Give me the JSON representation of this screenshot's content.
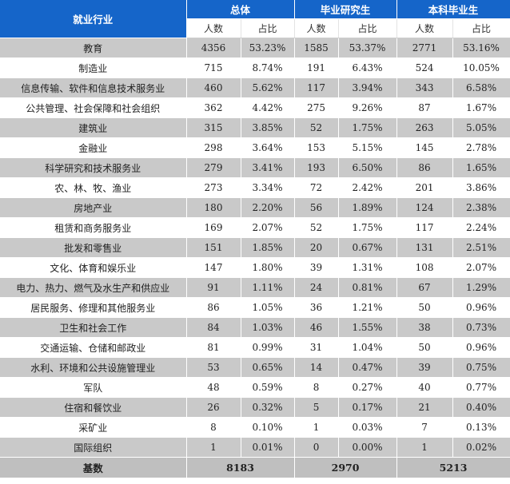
{
  "header": {
    "category": "就业行业",
    "groups": [
      "总体",
      "毕业研究生",
      "本科毕业生"
    ],
    "subheaders": [
      "人数",
      "占比",
      "人数",
      "占比",
      "人数",
      "占比"
    ]
  },
  "rows": [
    {
      "name": "教育",
      "cells": [
        "4356",
        "53.23%",
        "1585",
        "53.37%",
        "2771",
        "53.16%"
      ]
    },
    {
      "name": "制造业",
      "cells": [
        "715",
        "8.74%",
        "191",
        "6.43%",
        "524",
        "10.05%"
      ]
    },
    {
      "name": "信息传输、软件和信息技术服务业",
      "cells": [
        "460",
        "5.62%",
        "117",
        "3.94%",
        "343",
        "6.58%"
      ]
    },
    {
      "name": "公共管理、社会保障和社会组织",
      "cells": [
        "362",
        "4.42%",
        "275",
        "9.26%",
        "87",
        "1.67%"
      ]
    },
    {
      "name": "建筑业",
      "cells": [
        "315",
        "3.85%",
        "52",
        "1.75%",
        "263",
        "5.05%"
      ]
    },
    {
      "name": "金融业",
      "cells": [
        "298",
        "3.64%",
        "153",
        "5.15%",
        "145",
        "2.78%"
      ]
    },
    {
      "name": "科学研究和技术服务业",
      "cells": [
        "279",
        "3.41%",
        "193",
        "6.50%",
        "86",
        "1.65%"
      ]
    },
    {
      "name": "农、林、牧、渔业",
      "cells": [
        "273",
        "3.34%",
        "72",
        "2.42%",
        "201",
        "3.86%"
      ]
    },
    {
      "name": "房地产业",
      "cells": [
        "180",
        "2.20%",
        "56",
        "1.89%",
        "124",
        "2.38%"
      ]
    },
    {
      "name": "租赁和商务服务业",
      "cells": [
        "169",
        "2.07%",
        "52",
        "1.75%",
        "117",
        "2.24%"
      ]
    },
    {
      "name": "批发和零售业",
      "cells": [
        "151",
        "1.85%",
        "20",
        "0.67%",
        "131",
        "2.51%"
      ]
    },
    {
      "name": "文化、体育和娱乐业",
      "cells": [
        "147",
        "1.80%",
        "39",
        "1.31%",
        "108",
        "2.07%"
      ]
    },
    {
      "name": "电力、热力、燃气及水生产和供应业",
      "cells": [
        "91",
        "1.11%",
        "24",
        "0.81%",
        "67",
        "1.29%"
      ]
    },
    {
      "name": "居民服务、修理和其他服务业",
      "cells": [
        "86",
        "1.05%",
        "36",
        "1.21%",
        "50",
        "0.96%"
      ]
    },
    {
      "name": "卫生和社会工作",
      "cells": [
        "84",
        "1.03%",
        "46",
        "1.55%",
        "38",
        "0.73%"
      ]
    },
    {
      "name": "交通运输、仓储和邮政业",
      "cells": [
        "81",
        "0.99%",
        "31",
        "1.04%",
        "50",
        "0.96%"
      ]
    },
    {
      "name": "水利、环境和公共设施管理业",
      "cells": [
        "53",
        "0.65%",
        "14",
        "0.47%",
        "39",
        "0.75%"
      ]
    },
    {
      "name": "军队",
      "cells": [
        "48",
        "0.59%",
        "8",
        "0.27%",
        "40",
        "0.77%"
      ]
    },
    {
      "name": "住宿和餐饮业",
      "cells": [
        "26",
        "0.32%",
        "5",
        "0.17%",
        "21",
        "0.40%"
      ]
    },
    {
      "name": "采矿业",
      "cells": [
        "8",
        "0.10%",
        "1",
        "0.03%",
        "7",
        "0.13%"
      ]
    },
    {
      "name": "国际组织",
      "cells": [
        "1",
        "0.01%",
        "0",
        "0.00%",
        "1",
        "0.02%"
      ]
    }
  ],
  "base": {
    "label": "基数",
    "totals": [
      "8183",
      "2970",
      "5213"
    ]
  },
  "colors": {
    "header_bg": "#1565c9",
    "header_text": "#ffffff",
    "shaded_row": "#c9c9c9",
    "base_row": "#bfbfbf"
  }
}
